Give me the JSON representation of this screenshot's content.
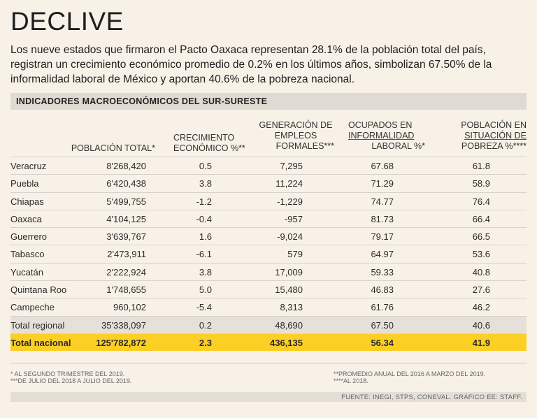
{
  "title": "DECLIVE",
  "lead": "Los nueve estados que firmaron el Pacto Oaxaca representan 28.1% de la población total del país, registran un crecimiento económico promedio de 0.2% en los últimos años, simbolizan 67.50% de la informalidad laboral de México y aportan 40.6% de la pobreza nacional.",
  "section_title": "INDICADORES MACROECONÓMICOS DEL SUR-SURESTE",
  "headers": {
    "poblacion": "POBLACIÓN TOTAL*",
    "crecimiento_1": "CRECIMIENTO",
    "crecimiento_2": "ECONÓMICO %**",
    "empleos_1": "GENERACIÓN DE",
    "empleos_2": "EMPLEOS",
    "empleos_3": "FORMALES***",
    "ocupados_1": "OCUPADOS EN",
    "ocupados_2": "INFORMALIDAD",
    "ocupados_3": "LABORAL %*",
    "pobreza_1": "POBLACIÓN EN",
    "pobreza_2": "SITUACIÓN DE",
    "pobreza_3": "POBREZA %****"
  },
  "rows": [
    {
      "name": "Veracruz",
      "poblacion": "8'268,420",
      "crecimiento": "0.5",
      "empleos": "7,295",
      "informalidad": "67.68",
      "pobreza": "61.8"
    },
    {
      "name": "Puebla",
      "poblacion": "6'420,438",
      "crecimiento": "3.8",
      "empleos": "11,224",
      "informalidad": "71.29",
      "pobreza": "58.9"
    },
    {
      "name": "Chiapas",
      "poblacion": "5'499,755",
      "crecimiento": "-1.2",
      "empleos": "-1,229",
      "informalidad": "74.77",
      "pobreza": "76.4"
    },
    {
      "name": "Oaxaca",
      "poblacion": "4'104,125",
      "crecimiento": "-0.4",
      "empleos": "-957",
      "informalidad": "81.73",
      "pobreza": "66.4"
    },
    {
      "name": "Guerrero",
      "poblacion": "3'639,767",
      "crecimiento": "1.6",
      "empleos": "-9,024",
      "informalidad": "79.17",
      "pobreza": "66.5"
    },
    {
      "name": "Tabasco",
      "poblacion": "2'473,911",
      "crecimiento": "-6.1",
      "empleos": "579",
      "informalidad": "64.97",
      "pobreza": "53.6"
    },
    {
      "name": "Yucatán",
      "poblacion": "2'222,924",
      "crecimiento": "3.8",
      "empleos": "17,009",
      "informalidad": "59.33",
      "pobreza": "40.8"
    },
    {
      "name": "Quintana Roo",
      "poblacion": "1'748,655",
      "crecimiento": "5.0",
      "empleos": "15,480",
      "informalidad": "46.83",
      "pobreza": "27.6"
    },
    {
      "name": "Campeche",
      "poblacion": "960,102",
      "crecimiento": "-5.4",
      "empleos": "8,313",
      "informalidad": "61.76",
      "pobreza": "46.2"
    }
  ],
  "regional": {
    "name": "Total regional",
    "poblacion": "35'338,097",
    "crecimiento": "0.2",
    "empleos": "48,690",
    "informalidad": "67.50",
    "pobreza": "40.6"
  },
  "national": {
    "name": "Total nacional",
    "poblacion": "125'782,872",
    "crecimiento": "2.3",
    "empleos": "436,135",
    "informalidad": "56.34",
    "pobreza": "41.9"
  },
  "footnotes": {
    "f1": "* AL SEGUNDO TRIMESTRE DEL 2019.",
    "f3": "***DE JULIO DEL 2018 A JULIO DEL 2019.",
    "f2": "**PROMEDIO ANUAL DEL 2016 A MARZO DEL 2019.",
    "f4": "****AL 2018."
  },
  "source": "FUENTE: INEGI, STPS, CONEVAL. GRÁFICO EE: STAFF.",
  "colors": {
    "background": "#f7f1e7",
    "highlight": "#fccf25",
    "section_bar": "#e0dbd2"
  }
}
